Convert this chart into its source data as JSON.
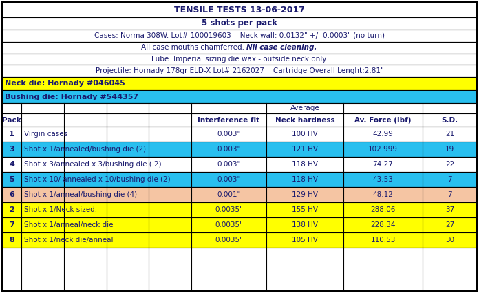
{
  "title1": "TENSILE TESTS 13-06-2017",
  "title2": "5 shots per pack",
  "line3": "Cases: Norma 308W. Lot# 100019603    Neck wall: 0.0132\" +/- 0.0003\" (no turn)",
  "line4_normal": "All case mouths chamferred. ",
  "line4_italic": "Nil case cleaning.",
  "line5": "Lube: Imperial sizing die wax - outside neck only.",
  "line6": "Projectile: Hornady 178gr ELD-X Lot# 2162027    Cartridge Overall Lenght:2.81\"",
  "neck_die": "Neck die: Hornady #046045",
  "bushing_die": "Bushing die: Hornady #544357",
  "neck_die_bg": "#FFFF00",
  "bushing_die_bg": "#29BFEF",
  "header_avg": "Average",
  "rows": [
    {
      "pack": "1",
      "desc": "Virgin cases",
      "interf": "0.003\"",
      "hardness": "100 HV",
      "force": "42.99",
      "sd": "21",
      "bg": "#FFFFFF"
    },
    {
      "pack": "3",
      "desc": "Shot x 1/annealed/bushing die (2)",
      "interf": "0.003\"",
      "hardness": "121 HV",
      "force": "102.999",
      "sd": "19",
      "bg": "#29BFEF"
    },
    {
      "pack": "4",
      "desc": "Shot x 3/annealed x 3/bushing die ( 2)",
      "interf": "0.003\"",
      "hardness": "118 HV",
      "force": "74.27",
      "sd": "22",
      "bg": "#FFFFFF"
    },
    {
      "pack": "5",
      "desc": "Shot x 10/ annealed x 10/bushing die (2)",
      "interf": "0.003\"",
      "hardness": "118 HV",
      "force": "43.53",
      "sd": "7",
      "bg": "#29BFEF"
    },
    {
      "pack": "6",
      "desc": "Shot x 1/anneal/bushing die (4)",
      "interf": "0.001\"",
      "hardness": "129 HV",
      "force": "48.12",
      "sd": "7",
      "bg": "#F5C5A3"
    },
    {
      "pack": "2",
      "desc": "Shot x 1/Neck sized.",
      "interf": "0.0035\"",
      "hardness": "155 HV",
      "force": "288.06",
      "sd": "37",
      "bg": "#FFFF00"
    },
    {
      "pack": "7",
      "desc": "Shot x 1/anneal/neck die",
      "interf": "0.0035\"",
      "hardness": "138 HV",
      "force": "228.34",
      "sd": "27",
      "bg": "#FFFF00"
    },
    {
      "pack": "8",
      "desc": "Shot x 1/neck die/anneal",
      "interf": "0.0035\"",
      "hardness": "105 HV",
      "force": "110.53",
      "sd": "30",
      "bg": "#FFFF00"
    }
  ],
  "text_dark": "#1A1A6E",
  "fig_bg": "#FFFFFF",
  "figw": 6.96,
  "figh": 4.26,
  "dpi": 100
}
